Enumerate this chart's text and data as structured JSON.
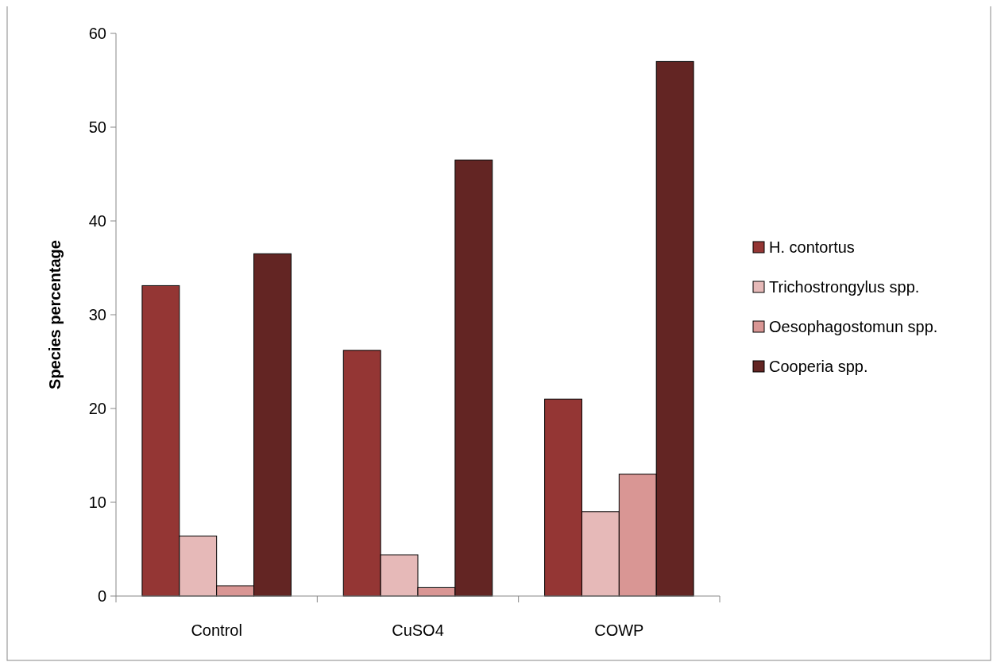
{
  "chart_data": {
    "type": "bar",
    "ylabel": "Species percentage",
    "categories": [
      "Control",
      "CuSO4",
      "COWP"
    ],
    "series": [
      {
        "name": "H. contortus",
        "color": "#943634",
        "values": [
          33.1,
          26.2,
          21.0
        ]
      },
      {
        "name": "Trichostrongylus spp.",
        "color": "#e6b9b8",
        "values": [
          6.4,
          4.4,
          9.0
        ]
      },
      {
        "name": "Oesophagostomun spp.",
        "color": "#d99694",
        "values": [
          1.1,
          0.9,
          13.0
        ]
      },
      {
        "name": "Cooperia spp.",
        "color": "#632523",
        "values": [
          36.5,
          46.5,
          57.0
        ]
      }
    ],
    "ylim": [
      0,
      60
    ],
    "yticks": [
      0,
      10,
      20,
      30,
      40,
      50,
      60
    ],
    "grid": false,
    "legend": "right"
  }
}
